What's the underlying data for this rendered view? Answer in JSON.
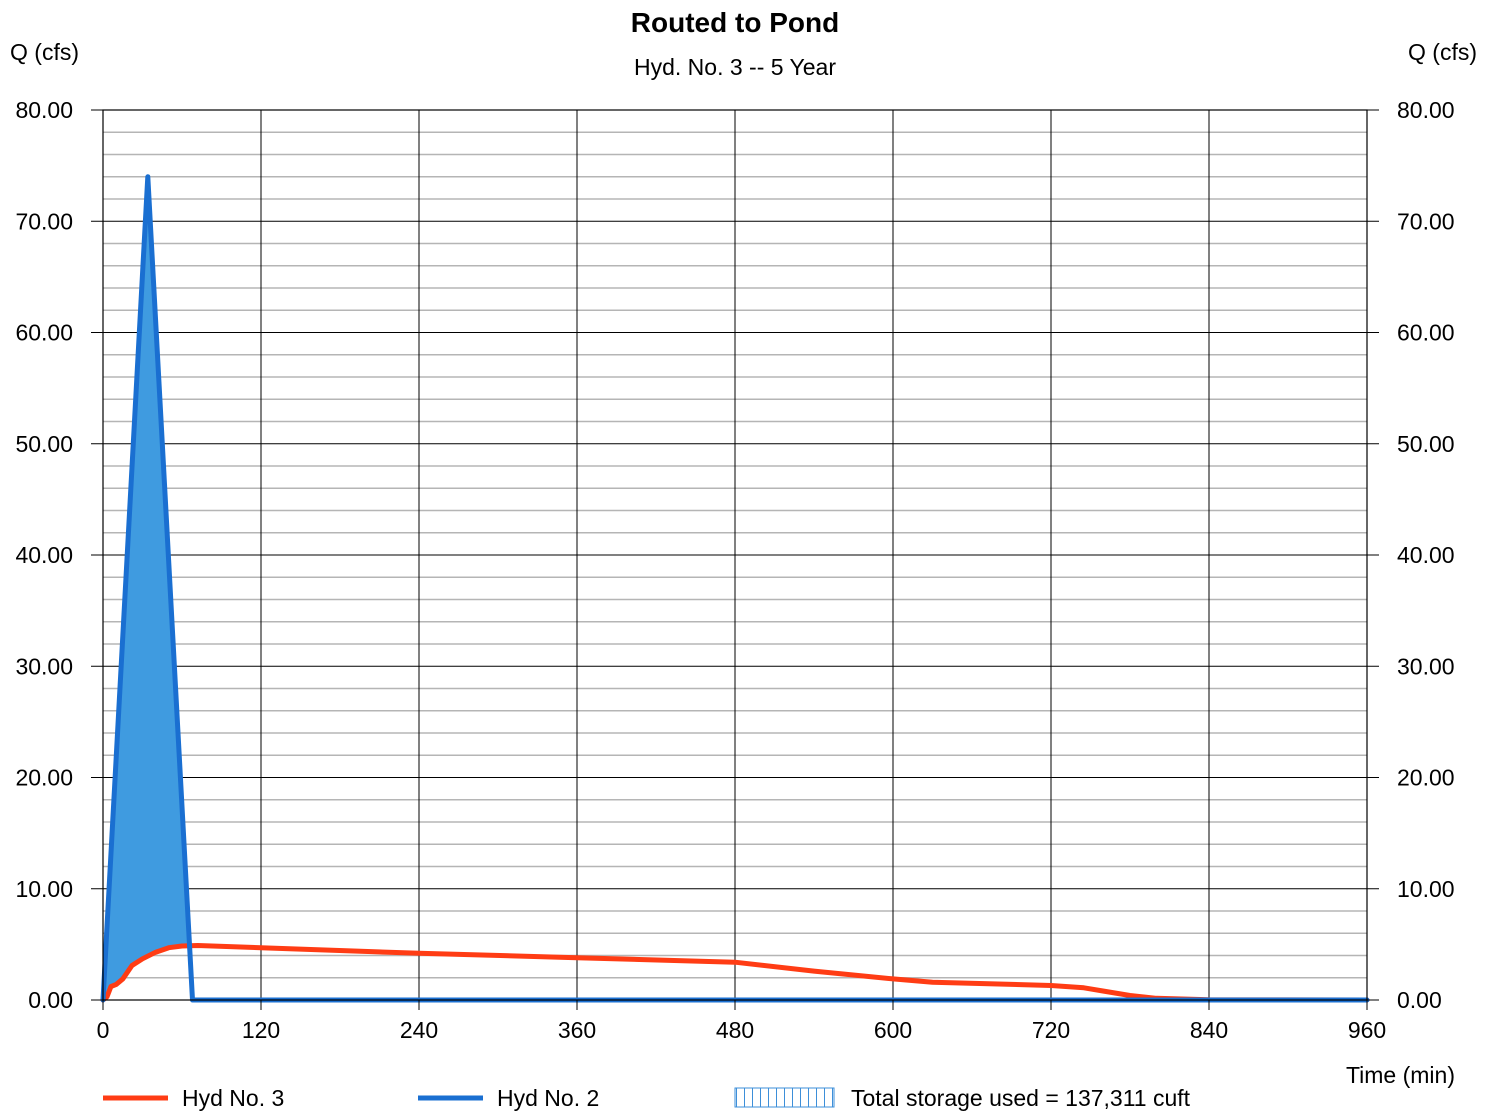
{
  "chart_data": {
    "type": "area",
    "title": "Routed to Pond",
    "subtitle": "Hyd. No. 3 -- 5 Year",
    "ylabel_left": "Q (cfs)",
    "ylabel_right": "Q (cfs)",
    "xlabel": "Time (min)",
    "xlim": [
      0,
      960
    ],
    "ylim": [
      0,
      80
    ],
    "x_ticks": [
      0,
      120,
      240,
      360,
      480,
      600,
      720,
      840,
      960
    ],
    "x_tick_labels": [
      "0",
      "120",
      "240",
      "360",
      "480",
      "600",
      "720",
      "840",
      "960"
    ],
    "y_ticks": [
      0,
      10,
      20,
      30,
      40,
      50,
      60,
      70,
      80
    ],
    "y_tick_labels": [
      "0.00",
      "10.00",
      "20.00",
      "30.00",
      "40.00",
      "50.00",
      "60.00",
      "70.00",
      "80.00"
    ],
    "y_minor_step": 2,
    "grid": true,
    "legend_position": "bottom",
    "storage_label": "Total storage used = 137,311 cuft",
    "series": [
      {
        "name": "Hyd No. 3",
        "color": "#ff3c14",
        "x": [
          0,
          3,
          6,
          10,
          15,
          22,
          30,
          40,
          50,
          60,
          72,
          120,
          240,
          360,
          480,
          540,
          600,
          630,
          720,
          745,
          760,
          780,
          800,
          840,
          900,
          960
        ],
        "y": [
          0,
          0.3,
          1.2,
          1.4,
          1.9,
          3.1,
          3.7,
          4.3,
          4.7,
          4.85,
          4.9,
          4.7,
          4.2,
          3.8,
          3.4,
          2.6,
          1.9,
          1.6,
          1.3,
          1.1,
          0.8,
          0.4,
          0.15,
          0.03,
          0.01,
          0
        ]
      },
      {
        "name": "Hyd No. 2",
        "color": "#1a6fd1",
        "x": [
          0,
          34,
          68,
          960
        ],
        "y": [
          0,
          74,
          0,
          0
        ]
      }
    ]
  }
}
